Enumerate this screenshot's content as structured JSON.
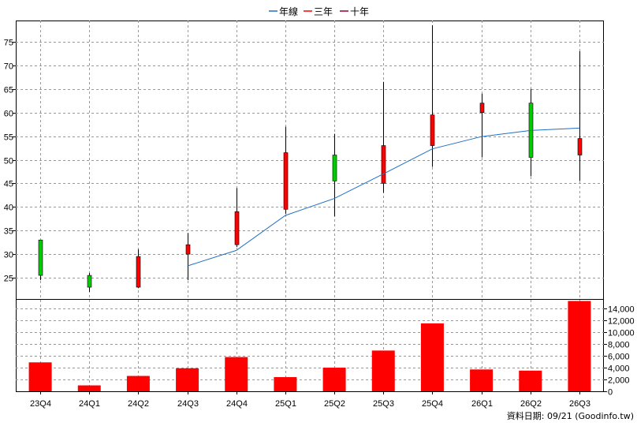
{
  "chart_data": {
    "type": "candlestick",
    "legend": [
      {
        "name": "年線",
        "color": "#1f6fc5"
      },
      {
        "name": "三年",
        "color": "#ff0000"
      },
      {
        "name": "十年",
        "color": "#990033"
      }
    ],
    "categories": [
      "23Q4",
      "24Q1",
      "24Q2",
      "24Q3",
      "24Q4",
      "25Q1",
      "25Q2",
      "25Q3",
      "25Q4",
      "26Q1",
      "26Q2",
      "26Q3"
    ],
    "price": {
      "ylim": [
        20.5,
        79.5
      ],
      "ticks": [
        25,
        30,
        35,
        40,
        45,
        50,
        55,
        60,
        65,
        70,
        75
      ],
      "ohlc": [
        {
          "open": 33.0,
          "high": 33.0,
          "low": 24.5,
          "close": 25.5
        },
        {
          "open": 25.5,
          "high": 26.0,
          "low": 22.0,
          "close": 23.0
        },
        {
          "open": 23.0,
          "high": 31.0,
          "low": 22.8,
          "close": 29.5
        },
        {
          "open": 30.0,
          "high": 34.5,
          "low": 24.5,
          "close": 32.0
        },
        {
          "open": 32.0,
          "high": 44.0,
          "low": 31.5,
          "close": 39.0
        },
        {
          "open": 39.5,
          "high": 57.0,
          "low": 38.5,
          "close": 51.5
        },
        {
          "open": 51.0,
          "high": 55.5,
          "low": 38.0,
          "close": 45.5
        },
        {
          "open": 45.0,
          "high": 66.5,
          "low": 43.0,
          "close": 53.0
        },
        {
          "open": 53.0,
          "high": 78.5,
          "low": 48.5,
          "close": 59.5
        },
        {
          "open": 60.0,
          "high": 64.0,
          "low": 50.5,
          "close": 62.0
        },
        {
          "open": 62.0,
          "high": 65.0,
          "low": 46.5,
          "close": 50.5
        },
        {
          "open": 51.0,
          "high": 73.0,
          "low": 45.5,
          "close": 54.5
        }
      ],
      "year_line": [
        null,
        null,
        null,
        27.5,
        30.8,
        38.2,
        41.8,
        47.0,
        52.3,
        54.9,
        56.2,
        56.7
      ]
    },
    "volume": {
      "ylim": [
        0,
        15500
      ],
      "ticks": [
        0,
        2000,
        4000,
        6000,
        8000,
        10000,
        12000,
        14000
      ],
      "tick_labels": [
        "0",
        "2,000",
        "4,000",
        "6,000",
        "8,000",
        "10,000",
        "12,000",
        "14,000"
      ],
      "values": [
        4900,
        1000,
        2600,
        3900,
        5800,
        2400,
        4000,
        6900,
        11500,
        3700,
        3500,
        15300
      ],
      "color": "#ff0000"
    },
    "colors": {
      "up": "#ff0000",
      "down": "#00cc00",
      "grid": "#999999",
      "year_line": "#1f6fc5"
    }
  },
  "footer": {
    "date_text": "資料日期: 09/21  (Goodinfo.tw)"
  }
}
